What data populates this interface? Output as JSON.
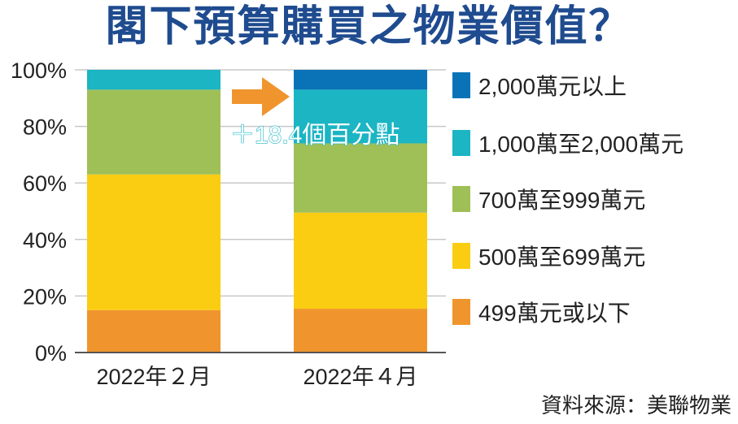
{
  "title": "閣下預算購買之物業價值？",
  "source": "資料來源：美聯物業",
  "chart_data": {
    "type": "bar",
    "stacked": true,
    "categories": [
      "2022年２月",
      "2022年４月"
    ],
    "y_ticks": [
      "0%",
      "20%",
      "40%",
      "60%",
      "80%",
      "100%"
    ],
    "ylim": [
      0,
      100
    ],
    "grid": "horizontal",
    "legend_position": "right",
    "series": [
      {
        "name": "499萬元或以下",
        "color": "#f0952e",
        "values": [
          15,
          15.5
        ]
      },
      {
        "name": "500萬至699萬元",
        "color": "#fbcd12",
        "values": [
          48,
          34
        ]
      },
      {
        "name": "700萬至999萬元",
        "color": "#9fbf57",
        "values": [
          30,
          24.5
        ]
      },
      {
        "name": "1,000萬至2,000萬元",
        "color": "#1bb5c4",
        "values": [
          7,
          19
        ]
      },
      {
        "name": "2,000萬元以上",
        "color": "#0a73b8",
        "values": [
          0,
          7
        ]
      }
    ],
    "annotation": {
      "text": "＋18.4個百分點",
      "arrow_color": "#f0952e"
    }
  }
}
